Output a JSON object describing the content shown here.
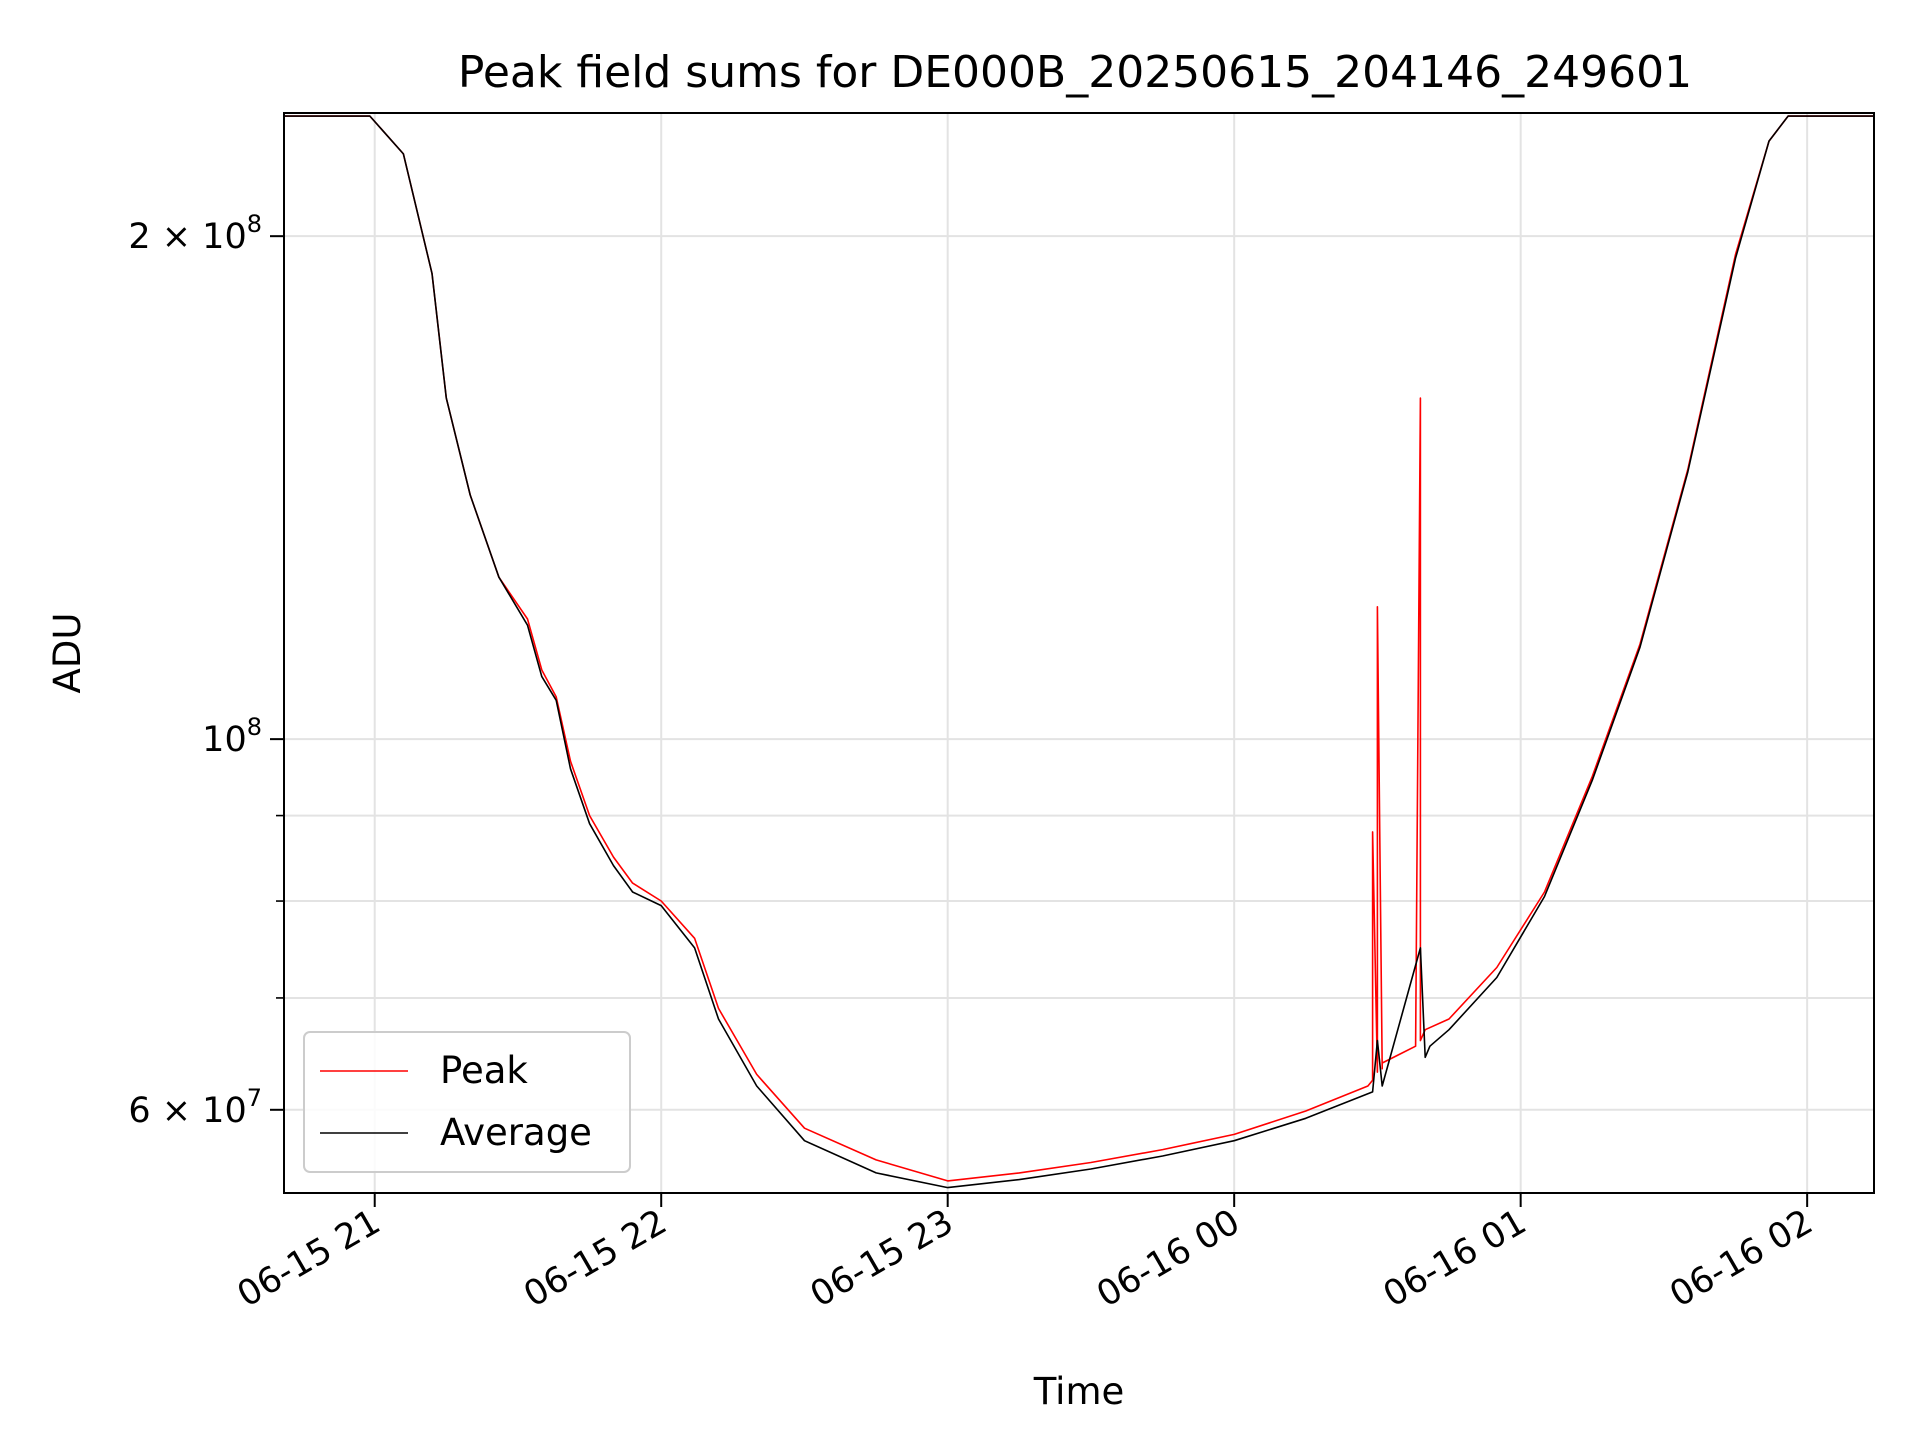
{
  "chart_data": {
    "type": "line",
    "title": "Peak field sums for DE000B_20250615_204146_249601",
    "xlabel": "Time",
    "ylabel": "ADU",
    "y_scale": "log",
    "grid": true,
    "legend_position": "lower-left",
    "xlim": [
      "2025-06-15 20:41",
      "2025-06-16 02:14"
    ],
    "ylim": [
      53500000,
      237000000
    ],
    "x_ticks": [
      {
        "at": "2025-06-15 21:00",
        "label": "06-15 21"
      },
      {
        "at": "2025-06-15 22:00",
        "label": "06-15 22"
      },
      {
        "at": "2025-06-15 23:00",
        "label": "06-15 23"
      },
      {
        "at": "2025-06-16 00:00",
        "label": "06-16 00"
      },
      {
        "at": "2025-06-16 01:00",
        "label": "06-16 01"
      },
      {
        "at": "2025-06-16 02:00",
        "label": "06-16 02"
      }
    ],
    "y_major_ticks": [
      {
        "value": 60000000,
        "mantissa": "6",
        "exponent": "7"
      },
      {
        "value": 100000000,
        "mantissa": "",
        "exponent": "8"
      },
      {
        "value": 200000000,
        "mantissa": "2",
        "exponent": "8"
      }
    ],
    "y_minor_ticks": [
      70000000,
      80000000,
      90000000
    ],
    "series": [
      {
        "name": "Peak",
        "color": "#ff0000",
        "x": [
          "2025-06-15 20:41",
          "2025-06-15 20:59",
          "2025-06-15 21:06",
          "2025-06-15 21:12",
          "2025-06-15 21:15",
          "2025-06-15 21:20",
          "2025-06-15 21:26",
          "2025-06-15 21:32",
          "2025-06-15 21:35",
          "2025-06-15 21:38",
          "2025-06-15 21:41",
          "2025-06-15 21:45",
          "2025-06-15 21:50",
          "2025-06-15 21:54",
          "2025-06-15 22:00",
          "2025-06-15 22:07",
          "2025-06-15 22:12",
          "2025-06-15 22:20",
          "2025-06-15 22:30",
          "2025-06-15 22:45",
          "2025-06-15 23:00",
          "2025-06-15 23:15",
          "2025-06-15 23:30",
          "2025-06-15 23:45",
          "2025-06-16 00:00",
          "2025-06-16 00:15",
          "2025-06-16 00:28",
          "2025-06-16 00:29",
          "2025-06-16 00:29",
          "2025-06-16 00:30",
          "2025-06-16 00:30",
          "2025-06-16 00:31",
          "2025-06-16 00:31",
          "2025-06-16 00:38",
          "2025-06-16 00:39",
          "2025-06-16 00:39",
          "2025-06-16 00:40",
          "2025-06-16 00:45",
          "2025-06-16 00:55",
          "2025-06-16 01:05",
          "2025-06-16 01:15",
          "2025-06-16 01:25",
          "2025-06-16 01:35",
          "2025-06-16 01:45",
          "2025-06-16 01:52",
          "2025-06-16 01:56",
          "2025-06-16 02:14"
        ],
        "values": [
          236000000,
          236000000,
          224000000,
          190000000,
          160000000,
          140000000,
          125000000,
          118000000,
          110000000,
          106000000,
          97000000,
          90000000,
          85000000,
          82000000,
          80000000,
          76000000,
          69000000,
          63000000,
          58500000,
          56000000,
          54400000,
          55000000,
          55800000,
          56800000,
          58000000,
          59900000,
          62000000,
          62500000,
          88000000,
          63200000,
          120000000,
          63500000,
          64000000,
          65500000,
          160000000,
          66000000,
          67000000,
          68000000,
          73000000,
          81000000,
          95000000,
          114000000,
          145000000,
          195000000,
          228000000,
          236000000,
          236000000
        ]
      },
      {
        "name": "Average",
        "color": "#000000",
        "x": [
          "2025-06-15 20:41",
          "2025-06-15 20:59",
          "2025-06-15 21:06",
          "2025-06-15 21:12",
          "2025-06-15 21:15",
          "2025-06-15 21:20",
          "2025-06-15 21:26",
          "2025-06-15 21:32",
          "2025-06-15 21:35",
          "2025-06-15 21:38",
          "2025-06-15 21:41",
          "2025-06-15 21:45",
          "2025-06-15 21:50",
          "2025-06-15 21:54",
          "2025-06-15 22:00",
          "2025-06-15 22:07",
          "2025-06-15 22:12",
          "2025-06-15 22:20",
          "2025-06-15 22:30",
          "2025-06-15 22:45",
          "2025-06-15 23:00",
          "2025-06-15 23:15",
          "2025-06-15 23:30",
          "2025-06-15 23:45",
          "2025-06-16 00:00",
          "2025-06-16 00:15",
          "2025-06-16 00:29",
          "2025-06-16 00:30",
          "2025-06-16 00:31",
          "2025-06-16 00:39",
          "2025-06-16 00:40",
          "2025-06-16 00:41",
          "2025-06-16 00:45",
          "2025-06-16 00:55",
          "2025-06-16 01:05",
          "2025-06-16 01:15",
          "2025-06-16 01:25",
          "2025-06-16 01:35",
          "2025-06-16 01:45",
          "2025-06-16 01:52",
          "2025-06-16 01:56",
          "2025-06-16 02:14"
        ],
        "values": [
          236000000,
          236000000,
          224000000,
          190000000,
          160000000,
          140000000,
          125000000,
          117000000,
          109000000,
          105500000,
          96000000,
          89000000,
          84000000,
          81000000,
          79500000,
          75000000,
          68000000,
          62000000,
          57500000,
          55000000,
          53900000,
          54500000,
          55300000,
          56300000,
          57500000,
          59300000,
          61500000,
          66000000,
          62000000,
          75000000,
          64500000,
          65500000,
          67000000,
          72000000,
          80500000,
          94500000,
          113500000,
          144500000,
          194000000,
          228000000,
          236000000,
          236000000
        ]
      }
    ]
  }
}
